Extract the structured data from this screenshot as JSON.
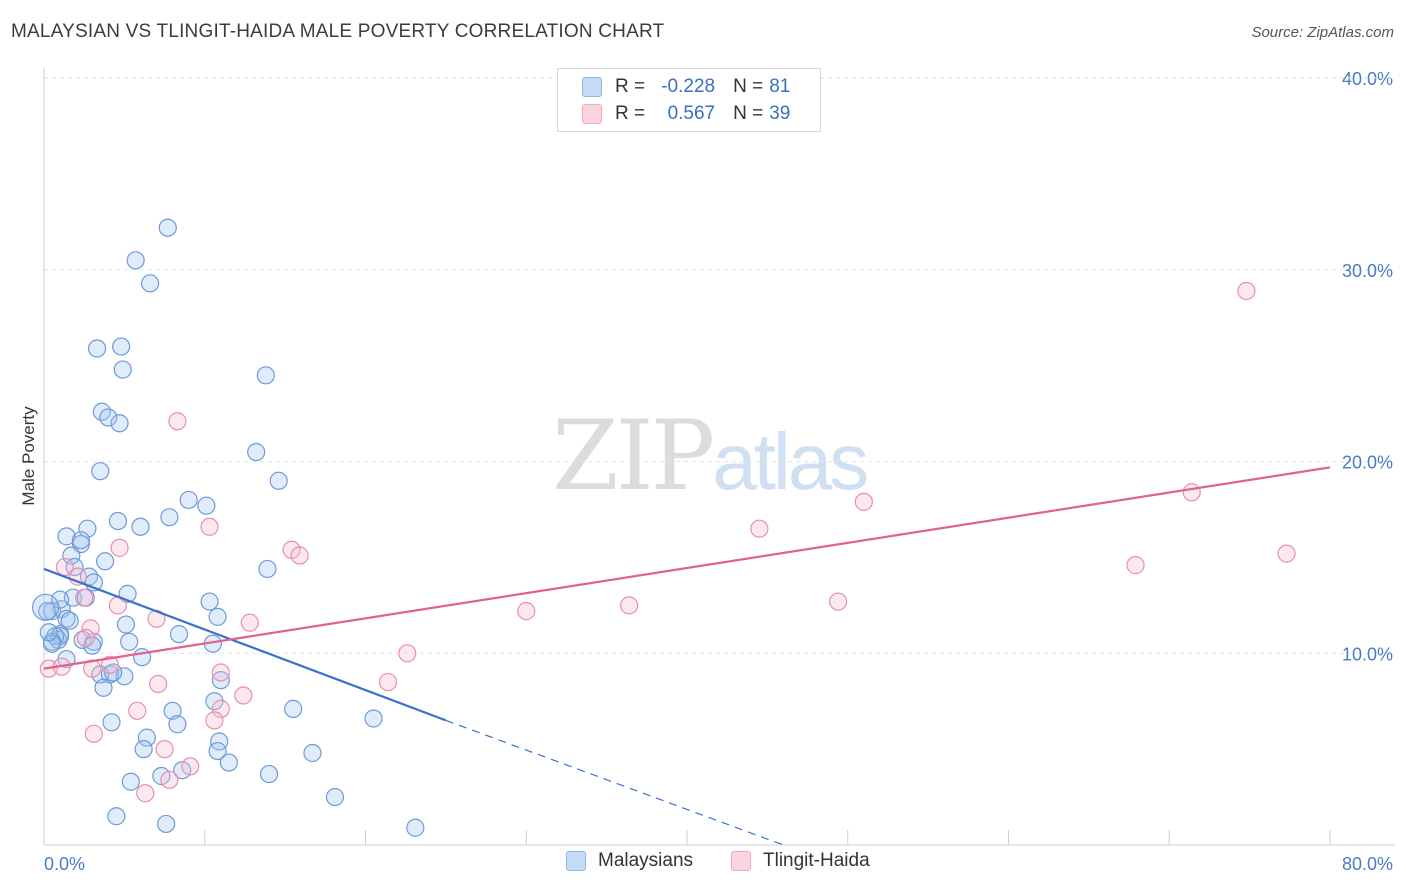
{
  "title": "MALAYSIAN VS TLINGIT-HAIDA MALE POVERTY CORRELATION CHART",
  "source": "Source: ZipAtlas.com",
  "watermark": {
    "zip": "ZIP",
    "atlas": "atlas"
  },
  "legend_top": [
    {
      "label_r": "R =",
      "r": "-0.228",
      "label_n": "N =",
      "n": "81",
      "color": "#a9c8ef"
    },
    {
      "label_r": "R =",
      "r": "0.567",
      "label_n": "N =",
      "n": "39",
      "color": "#f5b9cb"
    }
  ],
  "legend_bottom": [
    {
      "label": "Malaysians",
      "color": "#a9c8ef"
    },
    {
      "label": "Tlingit-Haida",
      "color": "#f5b9cb"
    }
  ],
  "chart_data": {
    "type": "scatter",
    "title": "MALAYSIAN VS TLINGIT-HAIDA MALE POVERTY CORRELATION CHART",
    "xlabel": "",
    "ylabel": "Male Poverty",
    "xlim": [
      0,
      80
    ],
    "ylim": [
      0,
      40
    ],
    "x_tick_labels": [
      "0.0%",
      "80.0%"
    ],
    "y_ticks": [
      10,
      20,
      30,
      40
    ],
    "y_tick_labels": [
      "10.0%",
      "20.0%",
      "30.0%",
      "40.0%"
    ],
    "grid": true,
    "series": [
      {
        "name": "Malaysians",
        "color": "#7aa7e0",
        "trend": {
          "x0": 0,
          "y0": 14.4,
          "x1": 25,
          "y1": 6.5,
          "dash_to_x": 46,
          "dash_to_y": 0
        },
        "points": [
          [
            7.7,
            32.2
          ],
          [
            5.7,
            30.5
          ],
          [
            6.6,
            29.3
          ],
          [
            3.3,
            25.9
          ],
          [
            4.8,
            26.0
          ],
          [
            4.9,
            24.8
          ],
          [
            13.8,
            24.5
          ],
          [
            3.6,
            22.6
          ],
          [
            4.0,
            22.3
          ],
          [
            4.7,
            22.0
          ],
          [
            13.2,
            20.5
          ],
          [
            3.5,
            19.5
          ],
          [
            14.6,
            19.0
          ],
          [
            9.0,
            18.0
          ],
          [
            10.1,
            17.7
          ],
          [
            7.8,
            17.1
          ],
          [
            4.6,
            16.9
          ],
          [
            6.0,
            16.6
          ],
          [
            2.7,
            16.5
          ],
          [
            1.4,
            16.1
          ],
          [
            2.3,
            15.7
          ],
          [
            2.3,
            15.9
          ],
          [
            1.7,
            15.1
          ],
          [
            3.8,
            14.8
          ],
          [
            13.9,
            14.4
          ],
          [
            1.9,
            14.5
          ],
          [
            2.8,
            14.0
          ],
          [
            3.1,
            13.7
          ],
          [
            1.8,
            12.9
          ],
          [
            2.6,
            12.9
          ],
          [
            5.2,
            13.1
          ],
          [
            10.3,
            12.7
          ],
          [
            0.5,
            12.2
          ],
          [
            1.1,
            12.3
          ],
          [
            1.0,
            12.8
          ],
          [
            1.4,
            11.8
          ],
          [
            1.6,
            11.7
          ],
          [
            10.8,
            11.9
          ],
          [
            5.1,
            11.5
          ],
          [
            8.4,
            11.0
          ],
          [
            1.0,
            11.0
          ],
          [
            0.9,
            10.7
          ],
          [
            1.0,
            10.9
          ],
          [
            0.7,
            10.9
          ],
          [
            0.5,
            10.6
          ],
          [
            0.5,
            10.5
          ],
          [
            2.4,
            10.7
          ],
          [
            3.1,
            10.6
          ],
          [
            3.0,
            10.4
          ],
          [
            5.3,
            10.6
          ],
          [
            10.5,
            10.5
          ],
          [
            1.4,
            9.7
          ],
          [
            6.1,
            9.8
          ],
          [
            3.5,
            8.9
          ],
          [
            5.0,
            8.8
          ],
          [
            4.1,
            8.9
          ],
          [
            4.3,
            9.0
          ],
          [
            3.7,
            8.2
          ],
          [
            11.0,
            8.6
          ],
          [
            10.6,
            7.5
          ],
          [
            8.0,
            7.0
          ],
          [
            15.5,
            7.1
          ],
          [
            20.5,
            6.6
          ],
          [
            4.2,
            6.4
          ],
          [
            8.3,
            6.3
          ],
          [
            6.4,
            5.6
          ],
          [
            10.9,
            5.4
          ],
          [
            6.2,
            5.0
          ],
          [
            10.8,
            4.9
          ],
          [
            16.7,
            4.8
          ],
          [
            11.5,
            4.3
          ],
          [
            8.6,
            3.9
          ],
          [
            7.3,
            3.6
          ],
          [
            14.0,
            3.7
          ],
          [
            5.4,
            3.3
          ],
          [
            18.1,
            2.5
          ],
          [
            4.5,
            1.5
          ],
          [
            7.6,
            1.1
          ],
          [
            23.1,
            0.9
          ],
          [
            0.2,
            12.2
          ],
          [
            0.3,
            11.1
          ]
        ]
      },
      {
        "name": "Tlingit-Haida",
        "color": "#ea8bab",
        "trend": {
          "x0": 0,
          "y0": 9.2,
          "x1": 80,
          "y1": 19.7
        },
        "points": [
          [
            74.8,
            28.9
          ],
          [
            8.3,
            22.1
          ],
          [
            71.4,
            18.4
          ],
          [
            51.0,
            17.9
          ],
          [
            10.3,
            16.6
          ],
          [
            44.5,
            16.5
          ],
          [
            4.7,
            15.5
          ],
          [
            15.4,
            15.4
          ],
          [
            15.9,
            15.1
          ],
          [
            77.3,
            15.2
          ],
          [
            67.9,
            14.6
          ],
          [
            1.3,
            14.5
          ],
          [
            2.1,
            14.0
          ],
          [
            2.5,
            12.9
          ],
          [
            4.6,
            12.5
          ],
          [
            36.4,
            12.5
          ],
          [
            49.4,
            12.7
          ],
          [
            30.0,
            12.2
          ],
          [
            7.0,
            11.8
          ],
          [
            12.8,
            11.6
          ],
          [
            2.9,
            11.3
          ],
          [
            2.6,
            10.8
          ],
          [
            22.6,
            10.0
          ],
          [
            0.3,
            9.2
          ],
          [
            1.1,
            9.3
          ],
          [
            3.0,
            9.2
          ],
          [
            4.1,
            9.4
          ],
          [
            11.0,
            9.0
          ],
          [
            7.1,
            8.4
          ],
          [
            21.4,
            8.5
          ],
          [
            12.4,
            7.8
          ],
          [
            5.8,
            7.0
          ],
          [
            11.0,
            7.1
          ],
          [
            10.6,
            6.5
          ],
          [
            3.1,
            5.8
          ],
          [
            7.5,
            5.0
          ],
          [
            9.1,
            4.1
          ],
          [
            7.8,
            3.4
          ],
          [
            6.3,
            2.7
          ]
        ]
      }
    ]
  }
}
